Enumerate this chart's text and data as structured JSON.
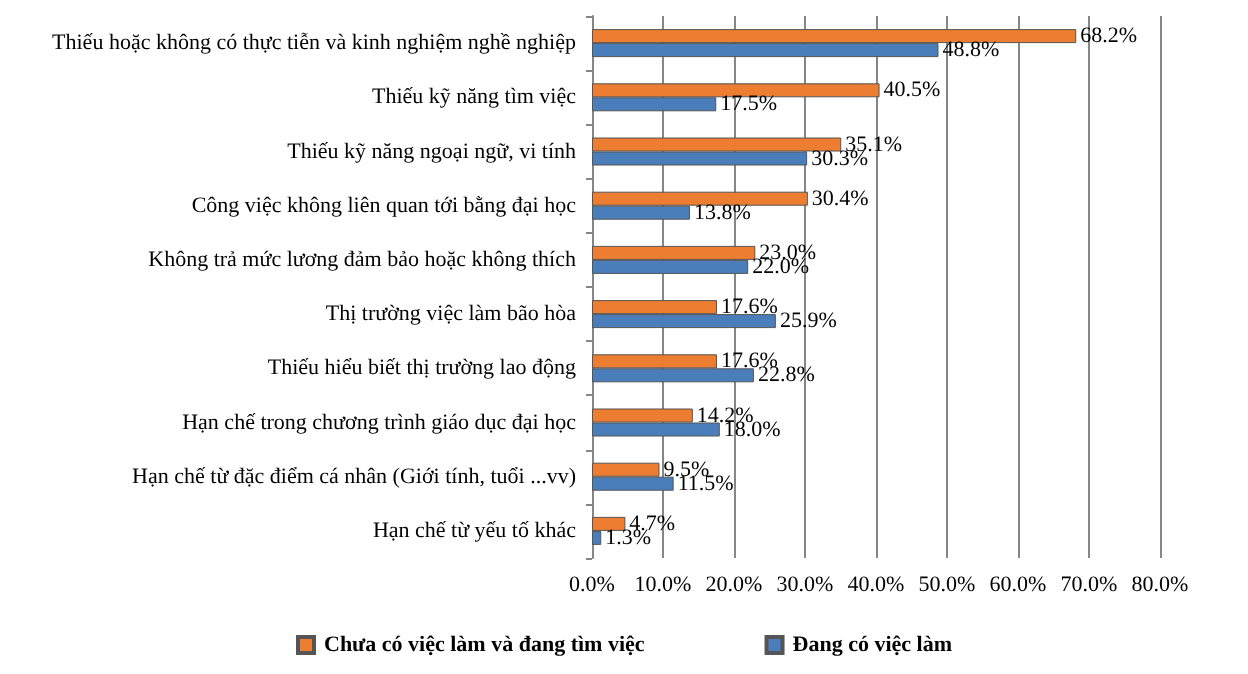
{
  "chart_data": {
    "type": "bar",
    "orientation": "horizontal",
    "categories": [
      "Thiếu hoặc không có thực tiễn và kinh nghiệm nghề nghiệp",
      "Thiếu kỹ năng tìm việc",
      "Thiếu kỹ năng ngoại ngữ, vi tính",
      "Công việc không liên quan tới bằng đại học",
      "Không trả mức lương đảm bảo hoặc không thích",
      "Thị trường việc làm bão hòa",
      "Thiếu hiểu biết thị trường lao động",
      "Hạn chế trong chương trình giáo dục đại học",
      "Hạn chế từ đặc điểm cá nhân (Giới tính, tuổi ...vv)",
      "Hạn chế từ yếu tố khác"
    ],
    "series": [
      {
        "name": "Chưa có việc làm và đang tìm việc",
        "color": "#ed7d31",
        "values": [
          68.2,
          40.5,
          35.1,
          30.4,
          23.0,
          17.6,
          17.6,
          14.2,
          9.5,
          4.7
        ],
        "value_labels": [
          "68.2%",
          "40.5%",
          "35.1%",
          "30.4%",
          "23.0%",
          "17.6%",
          "17.6%",
          "14.2%",
          "9.5%",
          "4.7%"
        ]
      },
      {
        "name": "Đang có việc làm",
        "color": "#4a7ebb",
        "values": [
          48.8,
          17.5,
          30.3,
          13.8,
          22.0,
          25.9,
          22.8,
          18.0,
          11.5,
          1.3
        ],
        "value_labels": [
          "48.8%",
          "17.5%",
          "30.3%",
          "13.8%",
          "22.0%",
          "25.9%",
          "22.8%",
          "18.0%",
          "11.5%",
          "1.3%"
        ]
      }
    ],
    "xlim": [
      0,
      80
    ],
    "xticks": [
      {
        "value": 0,
        "label": "0.0%"
      },
      {
        "value": 10,
        "label": "10.0%"
      },
      {
        "value": 20,
        "label": "20.0%"
      },
      {
        "value": 30,
        "label": "30.0%"
      },
      {
        "value": 40,
        "label": "40.0%"
      },
      {
        "value": 50,
        "label": "50.0%"
      },
      {
        "value": 60,
        "label": "60.0%"
      },
      {
        "value": 70,
        "label": "70.0%"
      },
      {
        "value": 80,
        "label": "80.0%"
      }
    ],
    "grid": "x",
    "legend": "bottom"
  }
}
